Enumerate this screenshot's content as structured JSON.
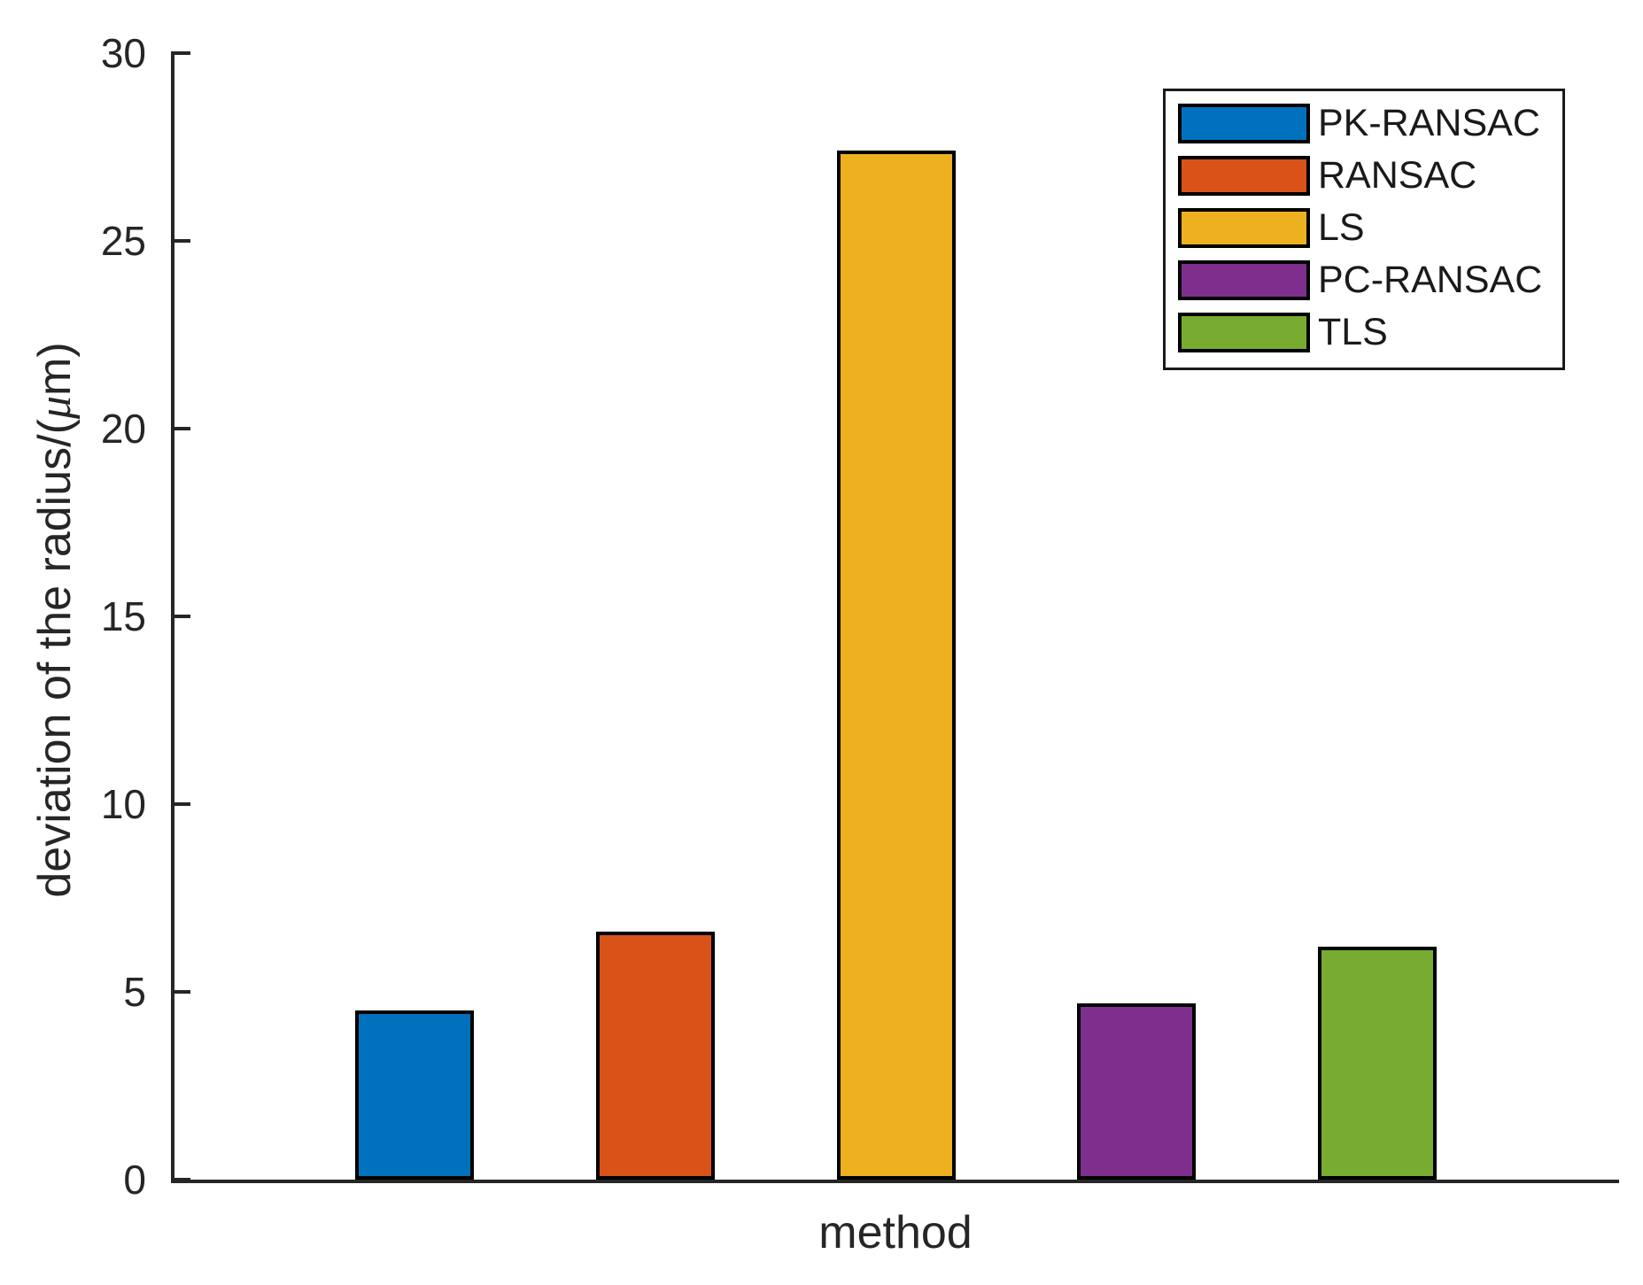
{
  "figure": {
    "background": "#ffffff",
    "axis_color": "#262626"
  },
  "labels": {
    "xlabel": "method",
    "ylabel_pre": "deviation of the radius/(",
    "ylabel_mu": "μ",
    "ylabel_post": "m)"
  },
  "chart_data": {
    "type": "bar",
    "title": "",
    "xlabel": "method",
    "ylabel": "deviation of the radius/(μm)",
    "categories": [
      "PK-RANSAC",
      "RANSAC",
      "LS",
      "PC-RANSAC",
      "TLS"
    ],
    "values": [
      4.5,
      6.6,
      27.4,
      4.7,
      6.2
    ],
    "colors": [
      "#0072BD",
      "#D95319",
      "#EDB120",
      "#7E2F8E",
      "#77AC30"
    ],
    "bar_edge_color": "#000000",
    "ylim": [
      0,
      30
    ],
    "yticks": [
      0,
      5,
      10,
      15,
      20,
      25,
      30
    ],
    "grid": false,
    "legend": {
      "position": "top-right",
      "entries": [
        "PK-RANSAC",
        "RANSAC",
        "LS",
        "PC-RANSAC",
        "TLS"
      ]
    }
  }
}
